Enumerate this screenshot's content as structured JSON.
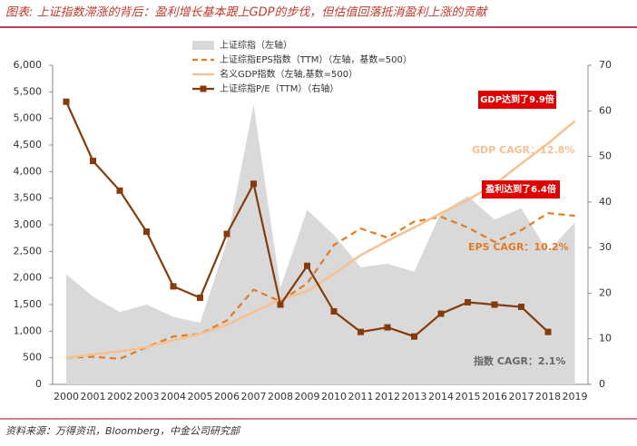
{
  "chart_data": {
    "type": "combo",
    "title": "图表: 上证指数滞涨的背后：盈利增长基本跟上GDP的步伐，但估值回落抵消盈利上涨的贡献",
    "source": "资料来源：万得资讯，Bloomberg，中金公司研究部",
    "categories": [
      "2000",
      "2001",
      "2002",
      "2003",
      "2004",
      "2005",
      "2006",
      "2007",
      "2008",
      "2009",
      "2010",
      "2011",
      "2012",
      "2013",
      "2014",
      "2015",
      "2016",
      "2017",
      "2018",
      "2019"
    ],
    "series": [
      {
        "name": "上证综指（左轴）",
        "kind": "area",
        "color": "#d9d9d9",
        "values": [
          2070,
          1650,
          1360,
          1500,
          1270,
          1160,
          2680,
          5260,
          1820,
          3280,
          2810,
          2200,
          2270,
          2120,
          3230,
          3540,
          3100,
          3310,
          2490,
          3050
        ]
      },
      {
        "name": "上证综指EPS指数（TTM）（左轴，基数=500）",
        "kind": "dashed",
        "color": "#e07b27",
        "values": [
          500,
          520,
          480,
          700,
          900,
          950,
          1200,
          1780,
          1560,
          1900,
          2620,
          2930,
          2760,
          3060,
          3150,
          2950,
          2680,
          2900,
          3220,
          3170
        ]
      },
      {
        "name": "名义GDP指数（左轴,基数=500）",
        "kind": "line",
        "color": "#f7c08f",
        "values": [
          500,
          560,
          620,
          700,
          830,
          950,
          1120,
          1360,
          1600,
          1750,
          2080,
          2430,
          2700,
          2950,
          3220,
          3470,
          3760,
          4150,
          4530,
          4950
        ]
      },
      {
        "name": "上证综指P/E（TTM）（右轴）",
        "kind": "marker",
        "color": "#843c0c",
        "axis": "y2",
        "values": [
          62,
          49,
          42.5,
          33.5,
          21.5,
          19,
          33,
          44,
          17.5,
          26,
          16,
          11.5,
          12.5,
          10.5,
          15.5,
          18,
          17.5,
          17,
          11.5,
          null
        ]
      }
    ],
    "annotations": [
      "GDP达到了9.9倍",
      "GDP CAGR：12.8%",
      "盈利达到了6.4倍",
      "EPS CAGR：10.2%",
      "指数 CAGR：2.1%"
    ],
    "ylim": [
      0,
      6000
    ],
    "yticks": [
      0,
      500,
      {
        "value": 1000,
        "label": "1,000"
      },
      {
        "value": 1500,
        "label": "1,500"
      },
      {
        "value": 2000,
        "label": "2,000"
      },
      {
        "value": 2500,
        "label": "2,500"
      },
      {
        "value": 3000,
        "label": "3,000"
      },
      {
        "value": 3500,
        "label": "3,500"
      },
      {
        "value": 4000,
        "label": "4,000"
      },
      {
        "value": 4500,
        "label": "4,500"
      },
      {
        "value": 5000,
        "label": "5,000"
      },
      {
        "value": 5500,
        "label": "5,500"
      },
      {
        "value": 6000,
        "label": "6,000"
      }
    ],
    "y2lim": [
      0,
      70
    ],
    "y2ticks": [
      0,
      10,
      20,
      30,
      40,
      50,
      60,
      70
    ]
  }
}
